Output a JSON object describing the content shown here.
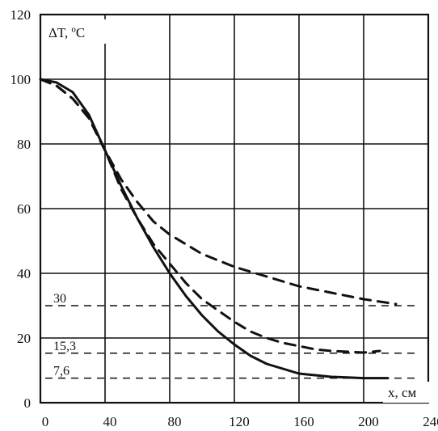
{
  "chart_data": {
    "type": "line",
    "xlim": [
      0,
      240
    ],
    "ylim": [
      0,
      120
    ],
    "x_ticks": [
      0,
      40,
      80,
      120,
      160,
      200,
      240
    ],
    "y_ticks": [
      0,
      20,
      40,
      60,
      80,
      100,
      120
    ],
    "xlabel": "x, см",
    "ylabel": "ΔT, ºC",
    "grid": true,
    "series": [
      {
        "style": "solid",
        "points": [
          [
            0,
            100
          ],
          [
            10,
            99
          ],
          [
            20,
            96
          ],
          [
            30,
            89
          ],
          [
            40,
            78
          ],
          [
            50,
            67
          ],
          [
            60,
            57
          ],
          [
            70,
            48
          ],
          [
            80,
            40
          ],
          [
            90,
            33
          ],
          [
            100,
            27
          ],
          [
            110,
            22
          ],
          [
            120,
            18
          ],
          [
            130,
            14.5
          ],
          [
            140,
            12
          ],
          [
            150,
            10.5
          ],
          [
            160,
            9
          ],
          [
            170,
            8.5
          ],
          [
            180,
            8
          ],
          [
            190,
            7.8
          ],
          [
            200,
            7.6
          ],
          [
            215,
            7.6
          ]
        ]
      },
      {
        "style": "dashed",
        "points": [
          [
            0,
            100
          ],
          [
            10,
            98
          ],
          [
            20,
            94
          ],
          [
            30,
            88
          ],
          [
            40,
            78
          ],
          [
            50,
            66
          ],
          [
            60,
            57
          ],
          [
            70,
            49
          ],
          [
            80,
            43
          ],
          [
            90,
            37
          ],
          [
            100,
            32
          ],
          [
            110,
            28.5
          ],
          [
            120,
            25
          ],
          [
            130,
            22
          ],
          [
            140,
            20
          ],
          [
            150,
            18.5
          ],
          [
            160,
            17.5
          ],
          [
            170,
            16.5
          ],
          [
            180,
            16
          ],
          [
            200,
            15.5
          ],
          [
            210,
            16
          ]
        ]
      },
      {
        "style": "dashed",
        "points": [
          [
            0,
            100
          ],
          [
            10,
            98
          ],
          [
            20,
            94
          ],
          [
            30,
            88
          ],
          [
            40,
            78
          ],
          [
            50,
            69
          ],
          [
            60,
            62
          ],
          [
            70,
            56
          ],
          [
            80,
            52
          ],
          [
            90,
            49
          ],
          [
            100,
            46
          ],
          [
            110,
            44
          ],
          [
            120,
            42
          ],
          [
            130,
            40.5
          ],
          [
            140,
            39
          ],
          [
            160,
            36
          ],
          [
            180,
            34
          ],
          [
            200,
            32
          ],
          [
            220,
            30.5
          ]
        ]
      }
    ],
    "reference_lines": [
      {
        "y": 30,
        "label": "30"
      },
      {
        "y": 15.3,
        "label": "15,3"
      },
      {
        "y": 7.6,
        "label": "7,6"
      }
    ]
  }
}
